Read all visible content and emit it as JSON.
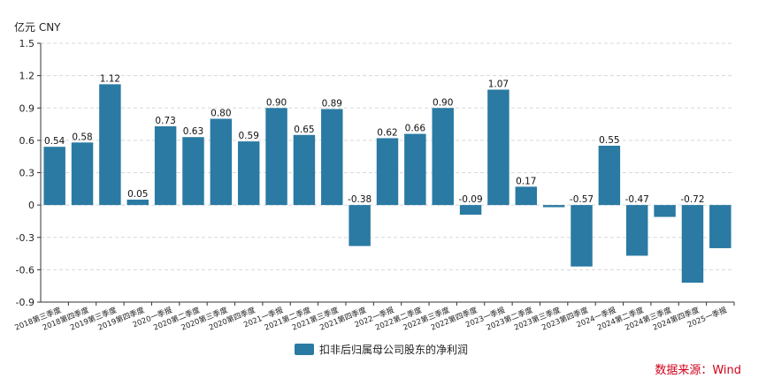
{
  "chart_data": {
    "type": "bar",
    "unit": "亿元  CNY",
    "categories": [
      "2018第三季度",
      "2018第四季度",
      "2019第三季度",
      "2019第四季度",
      "2020一季报",
      "2020第二季度",
      "2020第三季度",
      "2020第四季度",
      "2021一季报",
      "2021第二季度",
      "2021第三季度",
      "2021第四季度",
      "2022一季报",
      "2022第二季度",
      "2022第三季度",
      "2022第四季度",
      "2023一季报",
      "2023第二季度",
      "2023第三季度",
      "2023第四季度",
      "2024一季报",
      "2024第二季度",
      "2024第三季度",
      "2024第四季度",
      "2025一季报"
    ],
    "series": [
      {
        "name": "扣非后归属母公司股东的净利润",
        "values": [
          0.54,
          0.58,
          1.12,
          0.05,
          0.73,
          0.63,
          0.8,
          0.59,
          0.9,
          0.65,
          0.89,
          -0.38,
          0.62,
          0.66,
          0.9,
          -0.09,
          1.07,
          0.17,
          -0.02,
          -0.57,
          0.55,
          -0.47,
          -0.11,
          -0.72,
          -0.4
        ],
        "labels": [
          "0.54",
          "0.58",
          "1.12",
          "0.05",
          "0.73",
          "0.63",
          "0.80",
          "0.59",
          "0.90",
          "0.65",
          "0.89",
          "-0.38",
          "0.62",
          "0.66",
          "0.90",
          "-0.09",
          "1.07",
          "0.17",
          "",
          "-0.57",
          "0.55",
          "-0.47",
          "",
          "-0.72",
          ""
        ]
      }
    ],
    "yticks": [
      "1.5",
      "1.2",
      "0.9",
      "0.6",
      "0.3",
      "0",
      "-0.3",
      "-0.6",
      "-0.9"
    ],
    "ylim": [
      -0.9,
      1.5
    ],
    "grid": true,
    "legend_position": "bottom-center",
    "color": "#2a7aa3"
  },
  "legend": {
    "label": "扣非后归属母公司股东的净利润"
  },
  "source": "数据来源：Wind"
}
